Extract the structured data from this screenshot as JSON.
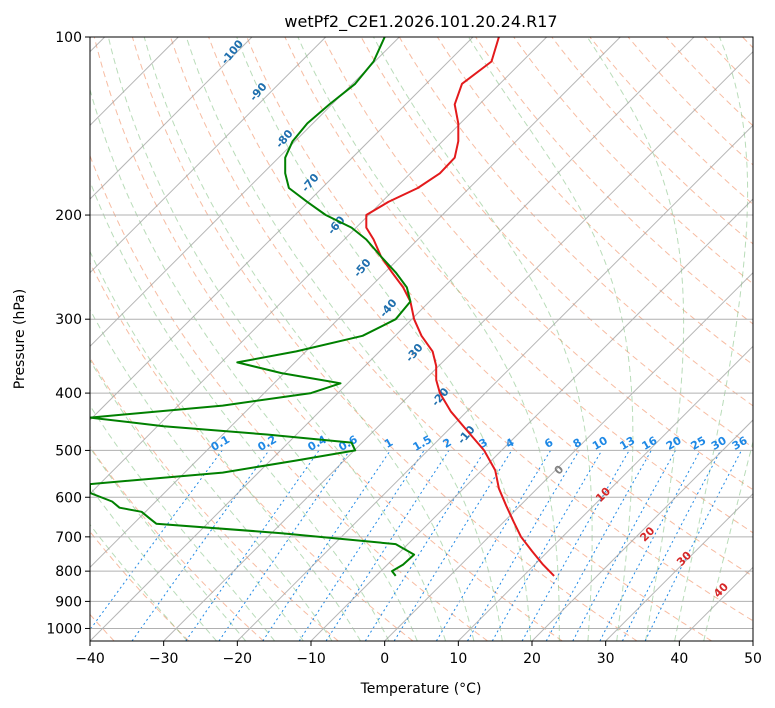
{
  "chart_data": {
    "type": "line",
    "subtype": "skew-T log-P diagram",
    "title": "wetPf2_C2E1.2026.101.20.24.R17",
    "xlabel": "Temperature (°C)",
    "ylabel": "Pressure (hPa)",
    "xlim": [
      -40,
      50
    ],
    "ylim": [
      1050,
      100
    ],
    "y_scale": "log",
    "grid": true,
    "x_ticks": [
      -40,
      -30,
      -20,
      -10,
      0,
      10,
      20,
      30,
      40,
      50
    ],
    "y_ticks": [
      100,
      200,
      300,
      400,
      500,
      600,
      700,
      800,
      900,
      1000
    ],
    "series": [
      {
        "role": "temperature",
        "color": "#e31a1c",
        "pressure": [
          100,
          110,
          120,
          130,
          140,
          150,
          160,
          170,
          180,
          190,
          200,
          210,
          220,
          235,
          250,
          265,
          280,
          300,
          320,
          340,
          360,
          380,
          400,
          430,
          460,
          500,
          540,
          580,
          620,
          660,
          700,
          740,
          780,
          815
        ],
        "temperature": [
          15.5,
          14.5,
          10.5,
          9.5,
          10,
          10,
          9.5,
          7.5,
          4.5,
          0.5,
          -2.5,
          -2.5,
          -1.5,
          -0.5,
          1,
          2.5,
          3.5,
          4,
          5,
          6.5,
          7,
          7,
          7.5,
          9,
          11,
          13.5,
          15,
          15.5,
          16.5,
          17.5,
          18.5,
          20,
          21.5,
          23
        ]
      },
      {
        "role": "dewpoint",
        "color": "#008000",
        "pressure": [
          100,
          110,
          120,
          130,
          140,
          150,
          160,
          170,
          180,
          190,
          200,
          210,
          220,
          235,
          250,
          265,
          280,
          300,
          320,
          340,
          355,
          370,
          385,
          400,
          420,
          440,
          455,
          470,
          485,
          500,
          520,
          545,
          570,
          590,
          610,
          625,
          635,
          650,
          665,
          690,
          720,
          750,
          780,
          800,
          815
        ],
        "dewpoint": [
          0,
          -1.5,
          -4,
          -7.5,
          -10.5,
          -12.5,
          -13.5,
          -13.5,
          -13,
          -10.5,
          -8,
          -4.5,
          -2.5,
          -0.5,
          1.5,
          3,
          3.5,
          1.5,
          -3,
          -12,
          -20,
          -14,
          -6,
          -10,
          -22,
          -40,
          -30,
          -16,
          -4.5,
          -4,
          -12,
          -22,
          -40,
          -40,
          -37,
          -36,
          -33,
          -32,
          -31,
          -14,
          1.5,
          4,
          2.5,
          1,
          1.5
        ]
      }
    ],
    "dry_adiabat_labels": [
      "-100",
      "-90",
      "-80",
      "-70",
      "-60",
      "-50",
      "-40",
      "-30",
      "-20",
      "-10"
    ],
    "mixing_ratio_labels": [
      "0.1",
      "0.2",
      "0.4",
      "0.6",
      "1",
      "1.5",
      "2",
      "3",
      "4",
      "6",
      "8",
      "10",
      "13",
      "16",
      "20",
      "25",
      "30",
      "36"
    ],
    "moist_adiabat_labels": [
      "0",
      "10",
      "20",
      "30",
      "40"
    ],
    "colors": {
      "temperature": "#e31a1c",
      "dewpoint": "#008000",
      "isotherm": "#9e9e9e",
      "dry_adiabat": "#f4a07a",
      "moist_adiabat": "#7fbf7f",
      "mixing_ratio": "#1e88e5",
      "dry_adiabat_label": "#1f6fae",
      "moist_adiabat_label": "#d62728",
      "moist_zero_label": "#808080"
    }
  }
}
